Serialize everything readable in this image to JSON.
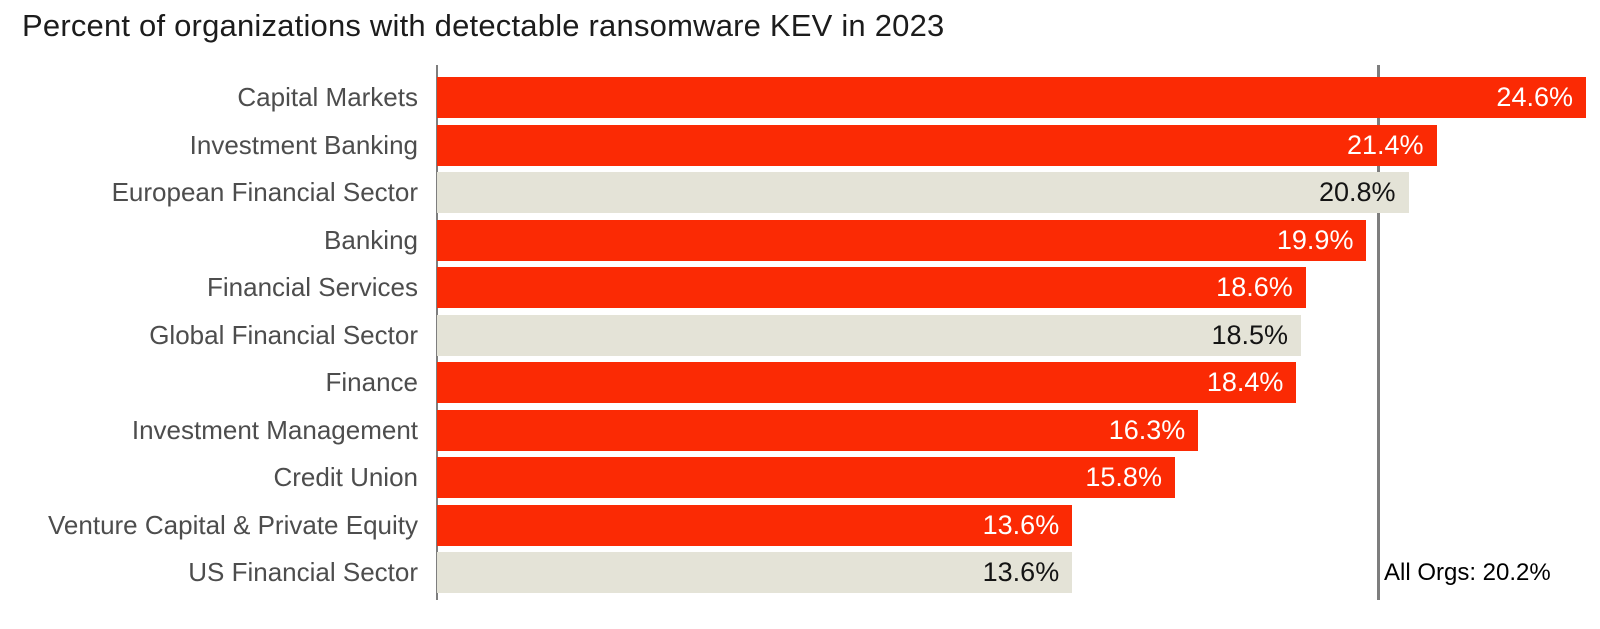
{
  "colors": {
    "bar_red": "#fb2a04",
    "bar_beige": "#e4e3d7",
    "axis_line": "#7e7e7e",
    "reference_line": "#7e7e7e",
    "label_text": "#4d4d4d",
    "title_text": "#1c1c1c",
    "value_on_red": "#ffffff",
    "value_on_beige": "#141414",
    "annotation_text": "#000000"
  },
  "chart_data": {
    "type": "bar",
    "orientation": "horizontal",
    "title": "Percent of organizations with detectable ransomware KEV in 2023",
    "categories": [
      "Capital Markets",
      "Investment Banking",
      "European Financial Sector",
      "Banking",
      "Financial Services",
      "Global Financial Sector",
      "Finance",
      "Investment Management",
      "Credit Union",
      "Venture Capital & Private Equity",
      "US Financial Sector"
    ],
    "values": [
      24.6,
      21.4,
      20.8,
      19.9,
      18.6,
      18.5,
      18.4,
      16.3,
      15.8,
      13.6,
      13.6
    ],
    "value_labels": [
      "24.6%",
      "21.4%",
      "20.8%",
      "19.9%",
      "18.6%",
      "18.5%",
      "18.4%",
      "16.3%",
      "15.8%",
      "13.6%",
      "13.6%"
    ],
    "bar_styles": [
      "red",
      "red",
      "beige",
      "red",
      "red",
      "beige",
      "red",
      "red",
      "red",
      "red",
      "beige"
    ],
    "xlabel": "",
    "ylabel": "",
    "xlim": [
      0,
      24.9
    ],
    "grid": false,
    "legend": "none",
    "reference_line": {
      "value": 20.2,
      "label": "All Orgs: 20.2%"
    }
  }
}
